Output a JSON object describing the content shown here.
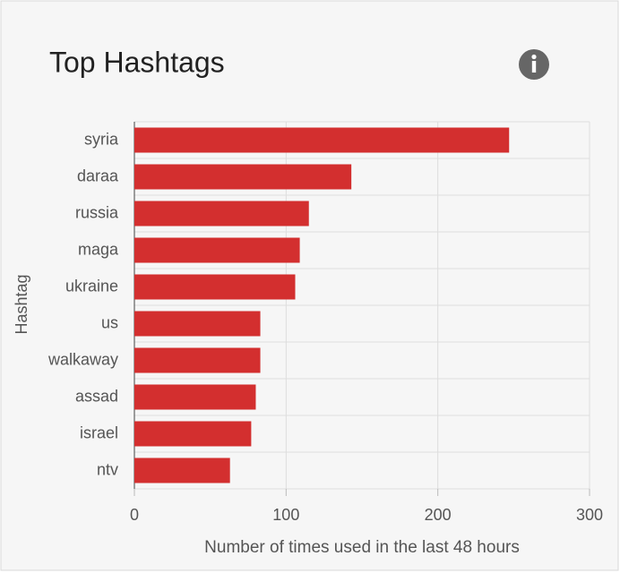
{
  "chart_data": {
    "type": "barh",
    "title": "Top Hashtags",
    "x_label": "Number of times used in the last 48 hours",
    "y_label": "Hashtag",
    "categories": [
      "syria",
      "daraa",
      "russia",
      "maga",
      "ukraine",
      "us",
      "walkaway",
      "assad",
      "israel",
      "ntv"
    ],
    "values": [
      247,
      143,
      115,
      109,
      106,
      83,
      83,
      80,
      77,
      63
    ],
    "color": "#d32f2f",
    "xlim": [
      0,
      300
    ],
    "xticks": [
      0,
      100,
      200,
      300
    ],
    "grid": true
  }
}
